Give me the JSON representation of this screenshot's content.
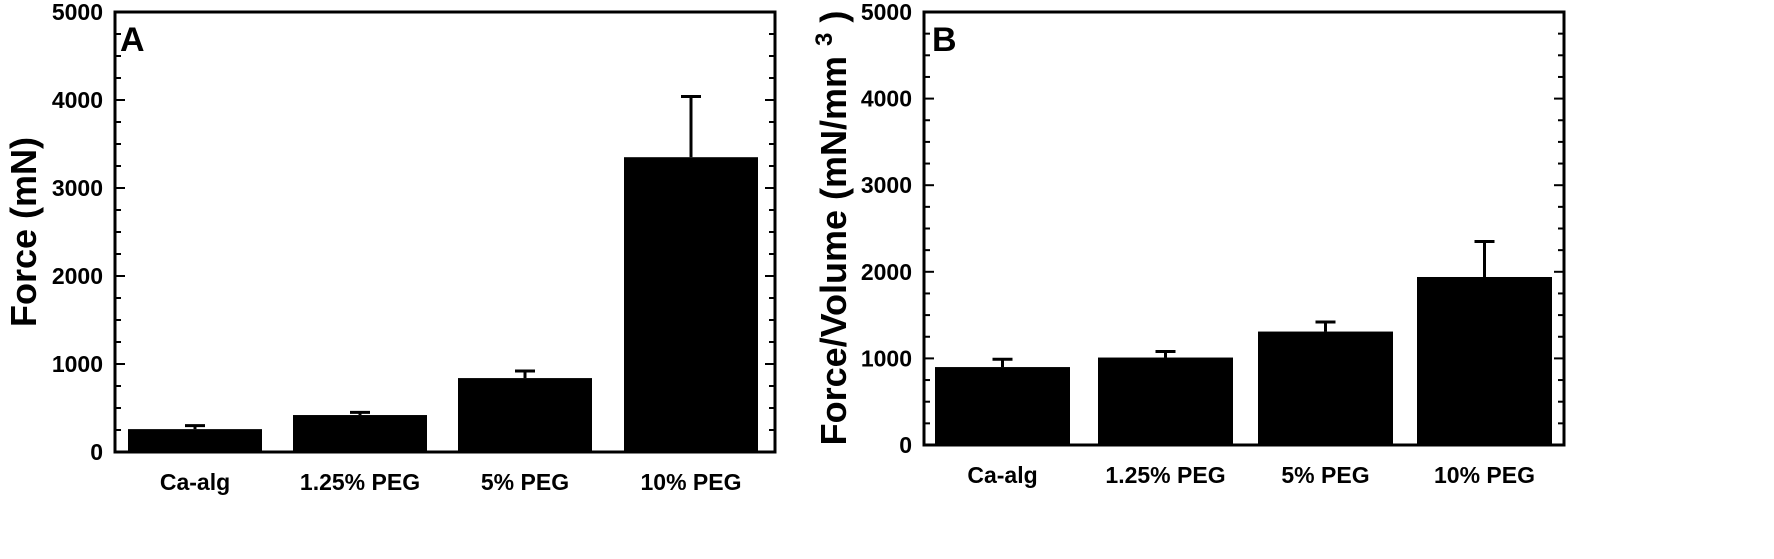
{
  "chart_data": [
    {
      "type": "bar",
      "panel": "A",
      "title": "",
      "xlabel": "",
      "ylabel": "Force  (mN)",
      "ylim": [
        0,
        5000
      ],
      "yticks": [
        "0",
        "1000",
        "2000",
        "3000",
        "4000",
        "5000"
      ],
      "categories": [
        "Ca-alg",
        "1.25% PEG",
        "5% PEG",
        "10% PEG"
      ],
      "values": [
        260,
        420,
        840,
        3350
      ],
      "errors": [
        40,
        30,
        80,
        690
      ]
    },
    {
      "type": "bar",
      "panel": "B",
      "title": "",
      "xlabel": "",
      "ylabel": "Force/Volume  (mN/mm",
      "ylabel_superscript": "3",
      "ylabel_suffix": ")",
      "ylim": [
        0,
        5000
      ],
      "yticks": [
        "0",
        "1000",
        "2000",
        "3000",
        "4000",
        "5000"
      ],
      "categories": [
        "Ca-alg",
        "1.25% PEG",
        "5% PEG",
        "10% PEG"
      ],
      "values": [
        900,
        1010,
        1310,
        1940
      ],
      "errors": [
        90,
        70,
        110,
        410
      ]
    }
  ]
}
